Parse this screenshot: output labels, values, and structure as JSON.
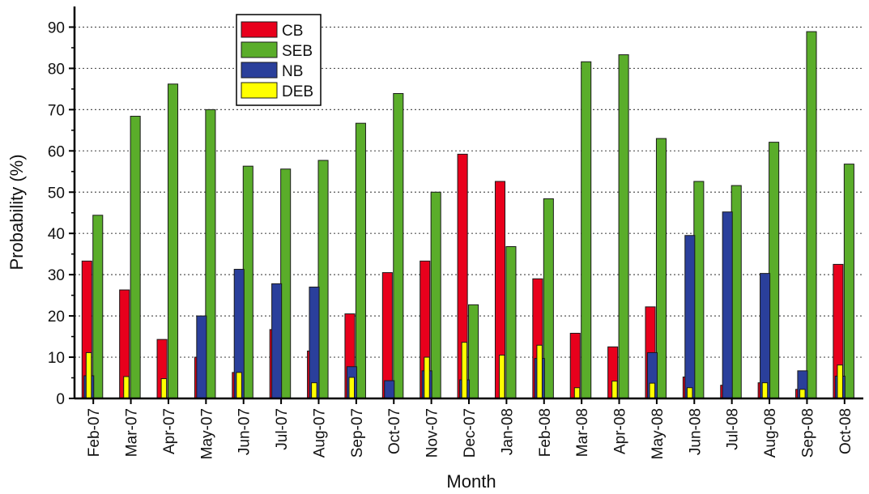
{
  "chart_data": {
    "type": "bar",
    "xlabel": "Month",
    "ylabel": "Probability (%)",
    "ylim": [
      0,
      95
    ],
    "yticks": [
      0,
      10,
      20,
      30,
      40,
      50,
      60,
      70,
      80,
      90
    ],
    "grid": "horizontal-dotted",
    "legend_position": "top-left",
    "categories": [
      "Feb-07",
      "Mar-07",
      "Apr-07",
      "May-07",
      "Jun-07",
      "Jul-07",
      "Aug-07",
      "Sep-07",
      "Oct-07",
      "Nov-07",
      "Dec-07",
      "Jan-08",
      "Feb-08",
      "Mar-08",
      "Apr-08",
      "May-08",
      "Jun-08",
      "Jul-08",
      "Aug-08",
      "Sep-08",
      "Oct-08"
    ],
    "series": [
      {
        "name": "CB",
        "color": "#e8001c",
        "values": [
          33.3,
          26.3,
          14.3,
          10.0,
          6.3,
          16.7,
          11.5,
          20.5,
          30.5,
          33.3,
          59.2,
          52.6,
          29.0,
          15.8,
          12.5,
          22.2,
          5.2,
          3.2,
          3.8,
          2.2,
          32.5
        ]
      },
      {
        "name": "SEB",
        "color": "#5aad2a",
        "values": [
          44.4,
          68.4,
          76.2,
          70.0,
          56.3,
          55.6,
          57.7,
          66.7,
          73.9,
          50.0,
          22.7,
          36.8,
          48.4,
          81.6,
          83.3,
          63.0,
          52.6,
          51.6,
          62.1,
          88.9,
          56.8
        ]
      },
      {
        "name": "NB",
        "color": "#2a3f9b",
        "values": [
          5.5,
          0,
          0,
          20.0,
          31.3,
          27.8,
          27.0,
          7.7,
          4.3,
          6.7,
          4.5,
          0,
          9.7,
          0,
          0,
          11.1,
          39.5,
          45.2,
          30.3,
          6.7,
          5.4
        ]
      },
      {
        "name": "DEB",
        "color": "#ffff00",
        "values": [
          11.1,
          5.3,
          4.8,
          0,
          6.3,
          0,
          3.8,
          5.1,
          0,
          10.0,
          13.6,
          10.5,
          12.9,
          2.6,
          4.2,
          3.7,
          2.6,
          0,
          3.8,
          2.2,
          8.1
        ]
      }
    ]
  }
}
